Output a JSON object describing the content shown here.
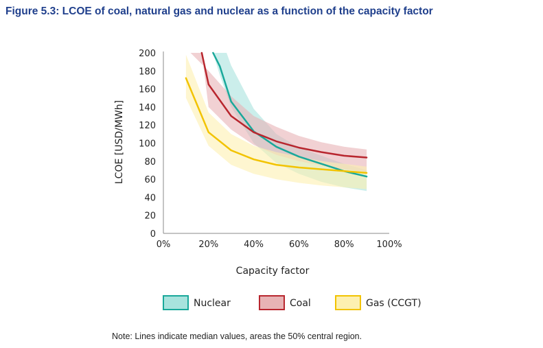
{
  "figure": {
    "title": "Figure 5.3: LCOE of coal, natural gas and nuclear as a function of the capacity factor",
    "note": "Note: Lines indicate median values, areas the 50% central region."
  },
  "chart_data": {
    "type": "line",
    "title": "Figure 5.3: LCOE of coal, natural gas and nuclear as a function of the capacity factor",
    "xlabel": "Capacity factor",
    "ylabel": "LCOE [USD/MWh]",
    "xlim": [
      0,
      100
    ],
    "ylim": [
      0,
      200
    ],
    "x_ticks": [
      "0%",
      "20%",
      "40%",
      "60%",
      "80%",
      "100%"
    ],
    "x_tick_values": [
      0,
      20,
      40,
      60,
      80,
      100
    ],
    "y_ticks": [
      "0",
      "20",
      "40",
      "60",
      "80",
      "100",
      "120",
      "140",
      "160",
      "180",
      "200"
    ],
    "y_tick_values": [
      0,
      20,
      40,
      60,
      80,
      100,
      120,
      140,
      160,
      180,
      200
    ],
    "grid": false,
    "legend_position": "bottom",
    "series": [
      {
        "name": "Nuclear",
        "line_color": "#19a89a",
        "fill_color": "#a8e3dd",
        "median": {
          "x": [
            22,
            25,
            30,
            40,
            50,
            60,
            70,
            80,
            90
          ],
          "y": [
            200,
            185,
            146,
            113,
            96,
            85,
            77,
            69,
            63
          ]
        },
        "upper": {
          "x": [
            28,
            30,
            40,
            50,
            60,
            70,
            80,
            90
          ],
          "y": [
            200,
            186,
            138,
            110,
            95,
            86,
            77,
            70
          ]
        },
        "lower": {
          "x": [
            22,
            25,
            30,
            40,
            50,
            60,
            70,
            80,
            90
          ],
          "y": [
            200,
            175,
            140,
            100,
            78,
            66,
            57,
            51,
            47
          ]
        }
      },
      {
        "name": "Coal",
        "line_color": "#b8262e",
        "fill_color": "#e8b3b5",
        "median": {
          "x": [
            17,
            20,
            30,
            40,
            50,
            60,
            70,
            80,
            90
          ],
          "y": [
            200,
            165,
            130,
            112,
            102,
            95,
            90,
            86,
            84
          ]
        },
        "upper": {
          "x": [
            12,
            20,
            30,
            40,
            50,
            60,
            70,
            80,
            90
          ],
          "y": [
            200,
            180,
            152,
            130,
            118,
            108,
            101,
            96,
            93
          ]
        },
        "lower": {
          "x": [
            17,
            20,
            30,
            40,
            50,
            60,
            70,
            80,
            90
          ],
          "y": [
            200,
            140,
            115,
            98,
            87,
            80,
            75,
            71,
            68
          ]
        }
      },
      {
        "name": "Gas (CCGT)",
        "line_color": "#f2c300",
        "fill_color": "#fdf0b0",
        "median": {
          "x": [
            10,
            20,
            30,
            40,
            50,
            60,
            70,
            80,
            90
          ],
          "y": [
            172,
            112,
            92,
            82,
            76,
            73,
            71,
            69,
            67
          ]
        },
        "upper": {
          "x": [
            10,
            20,
            30,
            40,
            50,
            60,
            70,
            80,
            90
          ],
          "y": [
            198,
            134,
            110,
            97,
            90,
            85,
            80,
            77,
            74
          ]
        },
        "lower": {
          "x": [
            10,
            20,
            30,
            40,
            50,
            60,
            70,
            80,
            90
          ],
          "y": [
            150,
            97,
            76,
            66,
            60,
            56,
            53,
            51,
            49
          ]
        }
      }
    ]
  }
}
